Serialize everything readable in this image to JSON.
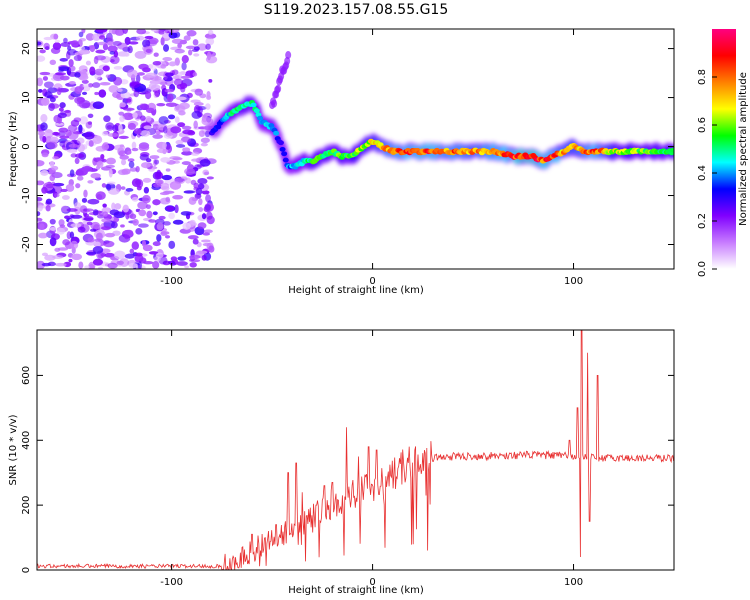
{
  "title": "S119.2023.157.08.55.G15",
  "chart_data": [
    {
      "type": "heatmap",
      "xlabel": "Height of straight line (km)",
      "ylabel": "Frequency (Hz)",
      "xlim": [
        -167,
        150
      ],
      "ylim": [
        -25,
        24
      ],
      "xticks": [
        -100,
        0,
        100
      ],
      "yticks": [
        -20,
        -10,
        0,
        10,
        20
      ],
      "colorbar": {
        "label": "Normalized spectral amplitude",
        "range": [
          0,
          1
        ],
        "ticks": [
          0.0,
          0.2,
          0.4,
          0.6,
          0.8
        ],
        "colors": [
          "#ffffff",
          "#c77bff",
          "#8000ff",
          "#0000ff",
          "#00ffff",
          "#00ff00",
          "#ffff00",
          "#ff8000",
          "#ff0000",
          "#ff0080"
        ]
      },
      "noise_region": {
        "x_range": [
          -167,
          -80
        ],
        "max_amplitude": 0.25
      },
      "ridge": {
        "x": [
          -80,
          -75,
          -70,
          -65,
          -60,
          -55,
          -50,
          -46,
          -42,
          -38,
          -34,
          -30,
          -25,
          -20,
          -15,
          -10,
          -5,
          0,
          10,
          20,
          30,
          40,
          50,
          60,
          70,
          75,
          80,
          85,
          90,
          95,
          100,
          105,
          110,
          120,
          130,
          140,
          150
        ],
        "frequency": [
          3,
          5,
          7,
          8,
          9,
          5,
          4,
          1,
          -4,
          -4,
          -3,
          -3,
          -2,
          -1,
          -2,
          -2,
          0,
          1,
          -1,
          -1,
          -1,
          -1,
          -1,
          -1,
          -2,
          -2,
          -2,
          -3,
          -2,
          -1,
          0,
          -1,
          -1,
          -1,
          -1,
          -1,
          -1
        ],
        "amplitude": [
          0.3,
          0.4,
          0.5,
          0.55,
          0.55,
          0.45,
          0.45,
          0.35,
          0.4,
          0.45,
          0.5,
          0.6,
          0.6,
          0.6,
          0.6,
          0.6,
          0.7,
          0.7,
          0.85,
          0.9,
          0.9,
          0.85,
          0.8,
          0.85,
          0.9,
          0.95,
          0.95,
          0.9,
          0.9,
          0.8,
          0.75,
          0.8,
          0.9,
          0.7,
          0.65,
          0.6,
          0.6
        ]
      },
      "secondary_branch": {
        "x": [
          -50,
          -46,
          -42
        ],
        "frequency": [
          8,
          14,
          18
        ],
        "amplitude": 0.2
      }
    },
    {
      "type": "line",
      "xlabel": "Height of straight line (km)",
      "ylabel": "SNR (10 * v/v)",
      "xlim": [
        -167,
        150
      ],
      "ylim": [
        0,
        740
      ],
      "xticks": [
        -100,
        0,
        100
      ],
      "yticks": [
        0,
        200,
        400,
        600
      ],
      "color": "#e83030",
      "baseline": [
        [
          -167,
          12
        ],
        [
          -75,
          12
        ],
        [
          -70,
          20
        ],
        [
          -60,
          60
        ],
        [
          -50,
          100
        ],
        [
          -40,
          130
        ],
        [
          -30,
          160
        ],
        [
          -20,
          200
        ],
        [
          -10,
          240
        ],
        [
          0,
          260
        ],
        [
          10,
          300
        ],
        [
          20,
          330
        ],
        [
          30,
          345
        ],
        [
          40,
          350
        ],
        [
          60,
          352
        ],
        [
          80,
          355
        ],
        [
          95,
          352
        ],
        [
          100,
          350
        ],
        [
          110,
          345
        ],
        [
          150,
          345
        ]
      ],
      "spikes": [
        {
          "x": -60,
          "y": 110
        },
        {
          "x": -48,
          "y": 140
        },
        {
          "x": -42,
          "y": 300
        },
        {
          "x": -38,
          "y": 330
        },
        {
          "x": -35,
          "y": 240
        },
        {
          "x": -28,
          "y": 200
        },
        {
          "x": -24,
          "y": 260
        },
        {
          "x": -20,
          "y": 270
        },
        {
          "x": -15,
          "y": 230
        },
        {
          "x": -13,
          "y": 440
        },
        {
          "x": -7,
          "y": 350
        },
        {
          "x": -2,
          "y": 380
        },
        {
          "x": 2,
          "y": 370
        },
        {
          "x": 98,
          "y": 400
        },
        {
          "x": 102,
          "y": 500
        },
        {
          "x": 104,
          "y": 740
        },
        {
          "x": 103.5,
          "y": 40
        },
        {
          "x": 107,
          "y": 670
        },
        {
          "x": 108,
          "y": 150
        },
        {
          "x": 112,
          "y": 600
        }
      ]
    }
  ]
}
